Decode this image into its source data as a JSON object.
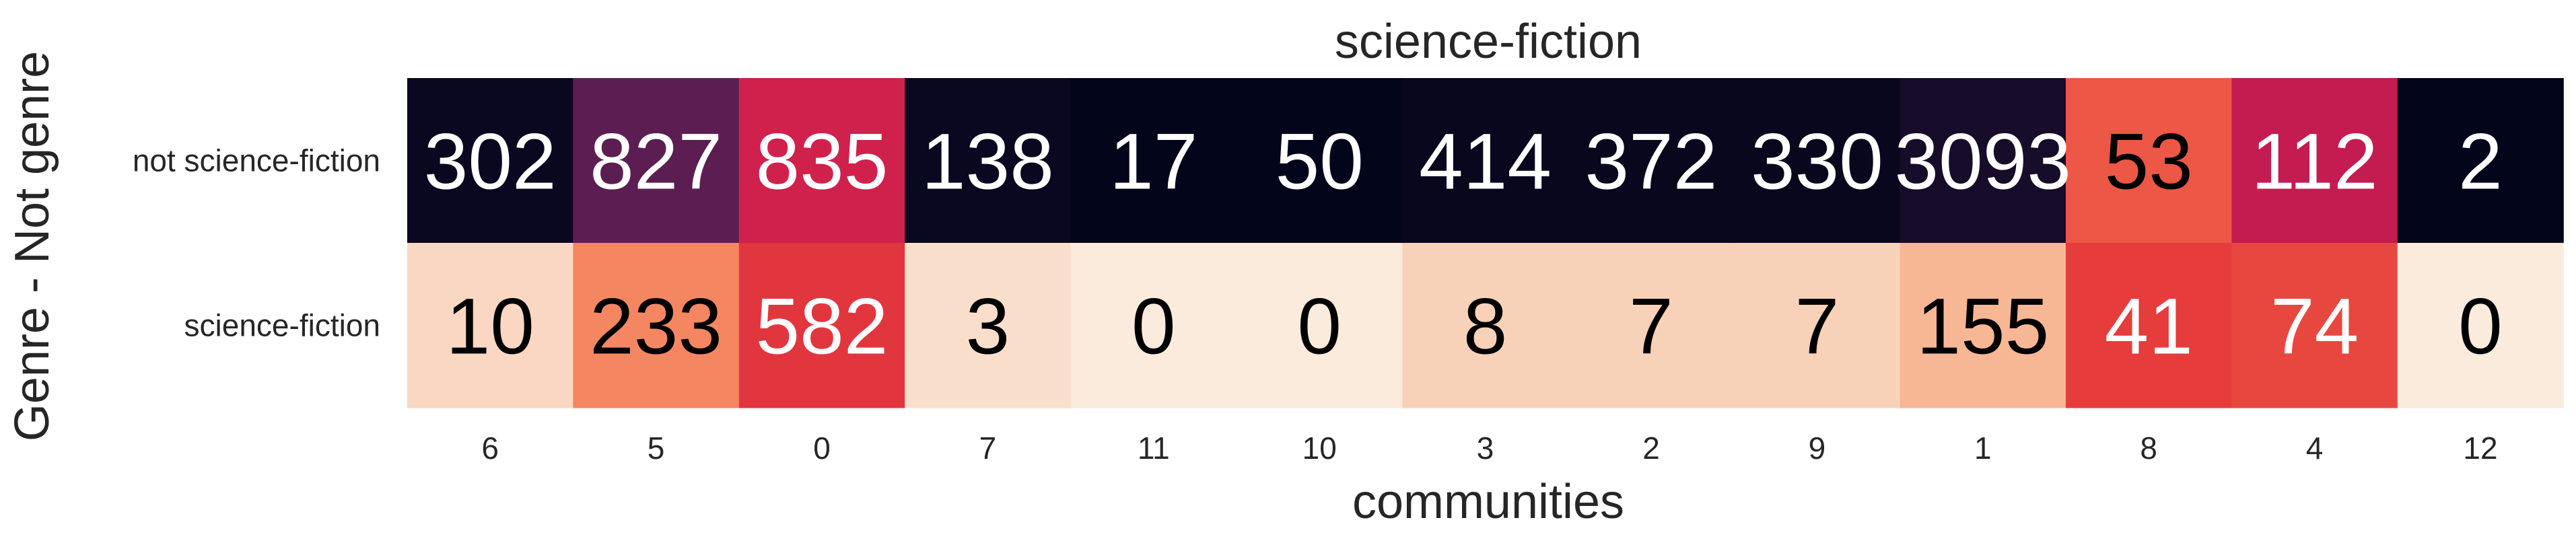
{
  "chart_data": {
    "type": "heatmap",
    "title": "science-fiction",
    "xlabel": "communities",
    "ylabel": "Genre - Not genre",
    "x_categories": [
      "6",
      "5",
      "0",
      "7",
      "11",
      "10",
      "3",
      "2",
      "9",
      "1",
      "8",
      "4",
      "12"
    ],
    "y_categories": [
      "not science-fiction",
      "science-fiction"
    ],
    "values": [
      [
        302,
        827,
        835,
        138,
        17,
        50,
        414,
        372,
        330,
        3093,
        53,
        112,
        2
      ],
      [
        10,
        233,
        582,
        3,
        0,
        0,
        8,
        7,
        7,
        155,
        41,
        74,
        0
      ]
    ],
    "cell_color_fraction": [
      [
        0.03,
        0.3,
        0.62,
        0.03,
        0.0,
        0.0,
        0.02,
        0.02,
        0.02,
        0.08,
        0.77,
        0.58,
        0.0
      ],
      [
        0.97,
        0.85,
        0.7,
        0.98,
        1.0,
        1.0,
        0.96,
        0.96,
        0.96,
        0.92,
        0.72,
        0.74,
        1.0
      ]
    ],
    "colormap": "rocket",
    "colorbar": false,
    "grid": false,
    "annotation_colors": {
      "on_dark": "#ffffff",
      "on_light": "#000000"
    },
    "text_color": "#262626"
  }
}
